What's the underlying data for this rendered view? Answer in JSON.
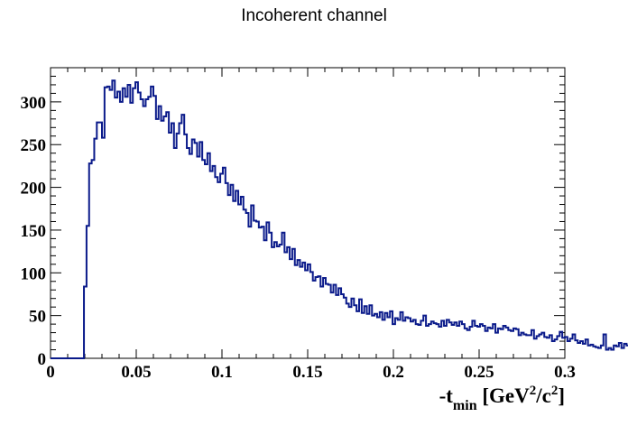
{
  "chart_data": {
    "type": "histogram",
    "title": "Incoherent channel",
    "xlabel": "-t",
    "xlabel_sub": "min",
    "xlabel_unit_parts": [
      "[GeV",
      "2",
      "/c",
      "2",
      "]"
    ],
    "ylabel": "",
    "xlim": [
      0,
      0.3
    ],
    "ylim": [
      0,
      340
    ],
    "x_ticks": [
      0,
      0.05,
      0.1,
      0.15,
      0.2,
      0.25,
      0.3
    ],
    "x_tick_labels": [
      "0",
      "0.05",
      "0.1",
      "0.15",
      "0.2",
      "0.25",
      "0.3"
    ],
    "y_ticks": [
      0,
      50,
      100,
      150,
      200,
      250,
      300
    ],
    "y_tick_labels": [
      "0",
      "50",
      "100",
      "150",
      "200",
      "250",
      "300"
    ],
    "grid": false,
    "legend": "none",
    "line_color": "#0a1a8a",
    "bin_width": 0.0015,
    "values": [
      0,
      0,
      0,
      0,
      0,
      0,
      0,
      0,
      0,
      0,
      0,
      0,
      0,
      84,
      155,
      228,
      232,
      257,
      276,
      276,
      258,
      317,
      318,
      314,
      325,
      305,
      312,
      300,
      316,
      306,
      320,
      299,
      316,
      323,
      311,
      303,
      295,
      303,
      306,
      318,
      307,
      280,
      295,
      278,
      283,
      288,
      264,
      275,
      246,
      263,
      275,
      285,
      262,
      246,
      239,
      256,
      252,
      236,
      253,
      232,
      227,
      240,
      219,
      225,
      212,
      206,
      216,
      223,
      205,
      191,
      203,
      184,
      196,
      180,
      189,
      174,
      170,
      154,
      179,
      161,
      160,
      153,
      154,
      138,
      159,
      147,
      130,
      136,
      131,
      133,
      147,
      124,
      130,
      116,
      128,
      109,
      115,
      107,
      112,
      103,
      110,
      101,
      91,
      95,
      96,
      84,
      94,
      87,
      86,
      77,
      86,
      74,
      82,
      75,
      71,
      64,
      60,
      70,
      62,
      55,
      69,
      53,
      61,
      52,
      62,
      50,
      52,
      48,
      54,
      45,
      53,
      48,
      55,
      40,
      47,
      45,
      54,
      44,
      48,
      47,
      43,
      45,
      40,
      39,
      44,
      50,
      38,
      40,
      43,
      41,
      40,
      37,
      44,
      38,
      45,
      42,
      39,
      42,
      38,
      43,
      40,
      35,
      33,
      37,
      44,
      38,
      37,
      40,
      38,
      32,
      36,
      35,
      40,
      30,
      35,
      34,
      38,
      36,
      33,
      32,
      35,
      34,
      27,
      30,
      28,
      27,
      27,
      33,
      23,
      26,
      28,
      30,
      25,
      24,
      27,
      20,
      22,
      26,
      31,
      24,
      25,
      20,
      23,
      28,
      21,
      18,
      20,
      17,
      22,
      15,
      16,
      14,
      13,
      12,
      15,
      28,
      10,
      12,
      10,
      15,
      14,
      18,
      12,
      17,
      15,
      17,
      13,
      16,
      19,
      11,
      10,
      12,
      11,
      12,
      27,
      10,
      12,
      9,
      8,
      7
    ]
  }
}
